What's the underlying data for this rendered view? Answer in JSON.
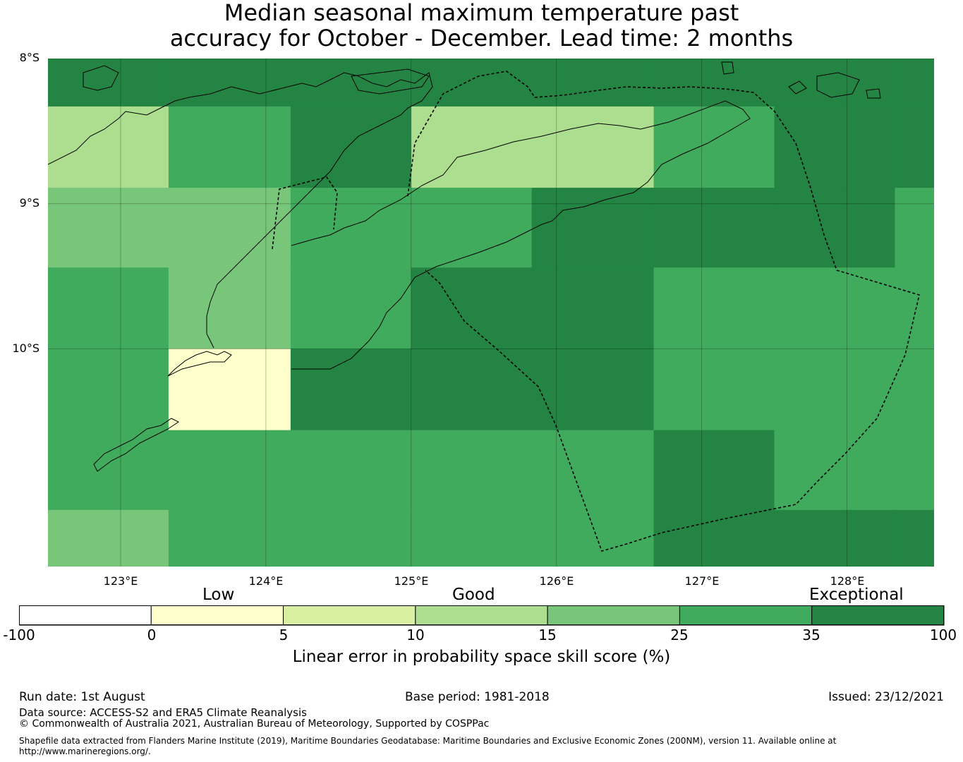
{
  "title": {
    "line1": "Median seasonal maximum temperature past",
    "line2": "accuracy for October - December. Lead time: 2 months"
  },
  "map": {
    "lon_range": [
      122.5,
      128.6
    ],
    "lat_range": [
      -11.5,
      -8.0
    ],
    "lat_ticks": [
      {
        "value": -8,
        "label": "8°S"
      },
      {
        "value": -9,
        "label": "9°S"
      },
      {
        "value": -10,
        "label": "10°S"
      }
    ],
    "lon_ticks": [
      {
        "value": 123,
        "label": "123°E"
      },
      {
        "value": 124,
        "label": "124°E"
      },
      {
        "value": 125,
        "label": "125°E"
      },
      {
        "value": 126,
        "label": "126°E"
      },
      {
        "value": 127,
        "label": "127°E"
      },
      {
        "value": 128,
        "label": "128°E"
      }
    ],
    "grid_lines": true,
    "cell_columns_lon_edges": [
      122.5,
      123.33,
      124.17,
      125.0,
      125.83,
      126.67,
      127.5,
      128.33,
      128.6
    ],
    "cell_rows_lat_edges": [
      -8.0,
      -8.33,
      -8.89,
      -9.44,
      -10.0,
      -10.56,
      -11.11,
      -11.5
    ],
    "skill_grid": [
      [
        40,
        40,
        40,
        40,
        40,
        40,
        40,
        40
      ],
      [
        12,
        30,
        40,
        12,
        12,
        30,
        40,
        40
      ],
      [
        20,
        20,
        30,
        30,
        40,
        40,
        40,
        30
      ],
      [
        30,
        20,
        30,
        40,
        40,
        30,
        30,
        30
      ],
      [
        30,
        2,
        40,
        40,
        40,
        30,
        30,
        30
      ],
      [
        30,
        30,
        30,
        30,
        30,
        40,
        30,
        30
      ],
      [
        20,
        30,
        30,
        30,
        30,
        40,
        40,
        40
      ]
    ]
  },
  "colorbar": {
    "category_labels": [
      "Low",
      "Good",
      "Exceptional"
    ],
    "ticks": [
      "-100",
      "0",
      "5",
      "10",
      "15",
      "25",
      "35",
      "100"
    ],
    "colors": [
      "#ffffff",
      "#ffffcc",
      "#d9f0a3",
      "#addd8e",
      "#78c679",
      "#41ab5d",
      "#238443"
    ],
    "label": "Linear error in probability space skill score (%)"
  },
  "footer": {
    "run_date": "Run date: 1st August",
    "base_period": "Base period: 1981-2018",
    "issued": "Issued: 23/12/2021",
    "data_source": "Data source: ACCESS-S2 and ERA5 Climate Reanalysis",
    "copyright": "© Commonwealth of Australia 2021, Australian Bureau of Meteorology, Supported by COSPPac",
    "shapefile_line1": "Shapefile data extracted from Flanders Marine Institute (2019), Maritime Boundaries Geodatabase: Maritime Boundaries and Exclusive Economic Zones (200NM), version 11. Available online at",
    "shapefile_line2": "http://www.marineregions.org/."
  }
}
